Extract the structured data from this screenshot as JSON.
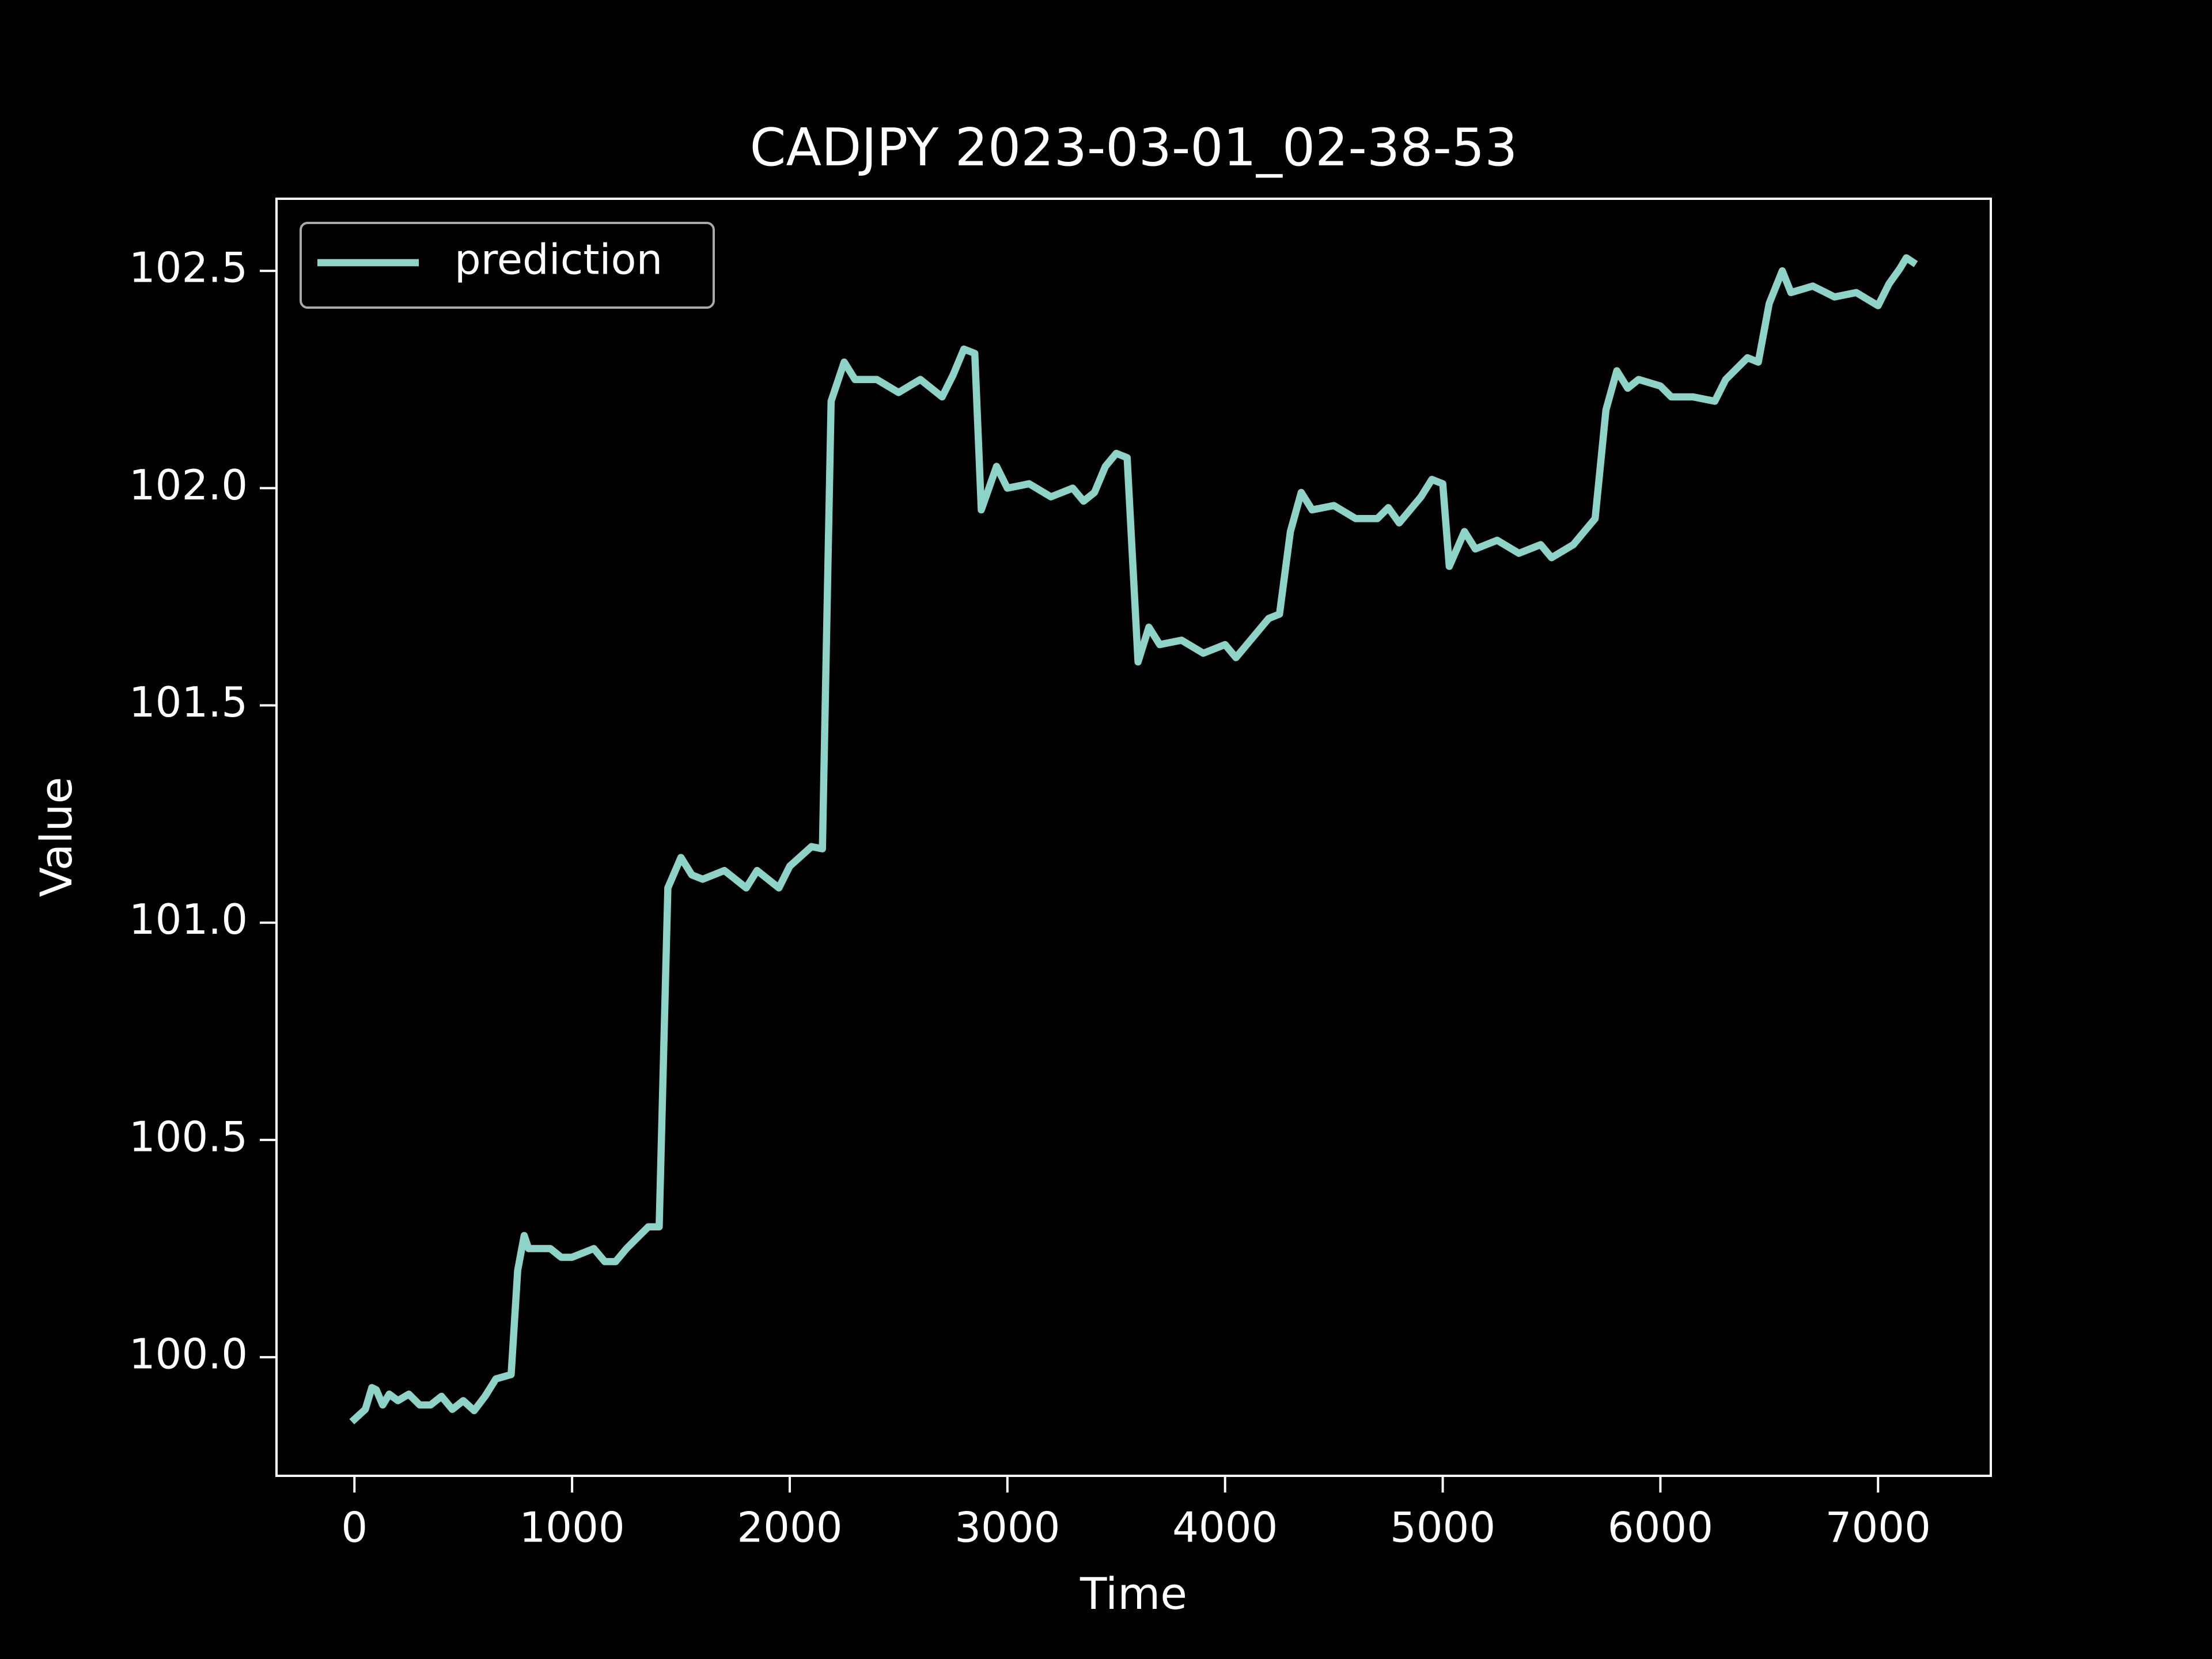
{
  "chart_data": {
    "type": "line",
    "title": "CADJPY 2023-03-01_02-38-53",
    "xlabel": "Time",
    "ylabel": "Value",
    "xlim": [
      -358,
      7518
    ],
    "ylim": [
      99.727,
      102.666
    ],
    "xticks": [
      0,
      1000,
      2000,
      3000,
      4000,
      5000,
      6000,
      7000
    ],
    "yticks": [
      {
        "value": 100,
        "label": "100.0"
      },
      100.5,
      {
        "value": 101,
        "label": "101.0"
      },
      101.5,
      {
        "value": 102,
        "label": "102.0"
      },
      102.5
    ],
    "legend": "upper left",
    "x": [
      0,
      50,
      80,
      100,
      130,
      160,
      200,
      250,
      300,
      350,
      400,
      450,
      500,
      550,
      600,
      650,
      720,
      750,
      780,
      800,
      850,
      900,
      950,
      1000,
      1100,
      1150,
      1200,
      1250,
      1300,
      1350,
      1400,
      1440,
      1500,
      1550,
      1600,
      1700,
      1800,
      1850,
      1950,
      2000,
      2100,
      2150,
      2190,
      2250,
      2300,
      2400,
      2500,
      2600,
      2700,
      2750,
      2800,
      2850,
      2880,
      2950,
      3000,
      3100,
      3200,
      3300,
      3350,
      3400,
      3450,
      3500,
      3550,
      3600,
      3650,
      3700,
      3800,
      3900,
      4000,
      4050,
      4100,
      4200,
      4250,
      4300,
      4350,
      4400,
      4500,
      4600,
      4700,
      4750,
      4800,
      4900,
      4950,
      5000,
      5030,
      5100,
      5150,
      5250,
      5350,
      5450,
      5500,
      5600,
      5650,
      5700,
      5750,
      5800,
      5850,
      5900,
      6000,
      6050,
      6150,
      6250,
      6300,
      6400,
      6450,
      6500,
      6560,
      6600,
      6700,
      6800,
      6900,
      7000,
      7050,
      7100,
      7130,
      7160
    ],
    "series": [
      {
        "name": "prediction",
        "color": "#8dd3c7",
        "values": [
          99.857,
          99.88,
          99.93,
          99.925,
          99.89,
          99.915,
          99.9,
          99.915,
          99.89,
          99.89,
          99.91,
          99.88,
          99.9,
          99.877,
          99.91,
          99.95,
          99.96,
          100.2,
          100.28,
          100.25,
          100.25,
          100.25,
          100.23,
          100.23,
          100.25,
          100.22,
          100.22,
          100.25,
          100.275,
          100.3,
          100.3,
          101.08,
          101.15,
          101.11,
          101.1,
          101.12,
          101.08,
          101.12,
          101.08,
          101.13,
          101.175,
          101.17,
          102.2,
          102.29,
          102.25,
          102.25,
          102.22,
          102.25,
          102.21,
          102.26,
          102.32,
          102.31,
          101.95,
          102.05,
          102.0,
          102.01,
          101.98,
          102.0,
          101.97,
          101.99,
          102.05,
          102.08,
          102.07,
          101.6,
          101.68,
          101.64,
          101.65,
          101.62,
          101.64,
          101.61,
          101.64,
          101.7,
          101.71,
          101.9,
          101.99,
          101.95,
          101.96,
          101.93,
          101.93,
          101.955,
          101.92,
          101.98,
          102.02,
          102.01,
          101.82,
          101.9,
          101.86,
          101.88,
          101.85,
          101.87,
          101.84,
          101.87,
          101.9,
          101.93,
          102.18,
          102.27,
          102.23,
          102.25,
          102.235,
          102.21,
          102.21,
          102.2,
          102.25,
          102.3,
          102.29,
          102.425,
          102.5,
          102.45,
          102.465,
          102.44,
          102.45,
          102.42,
          102.47,
          102.505,
          102.53,
          102.52
        ]
      }
    ]
  }
}
